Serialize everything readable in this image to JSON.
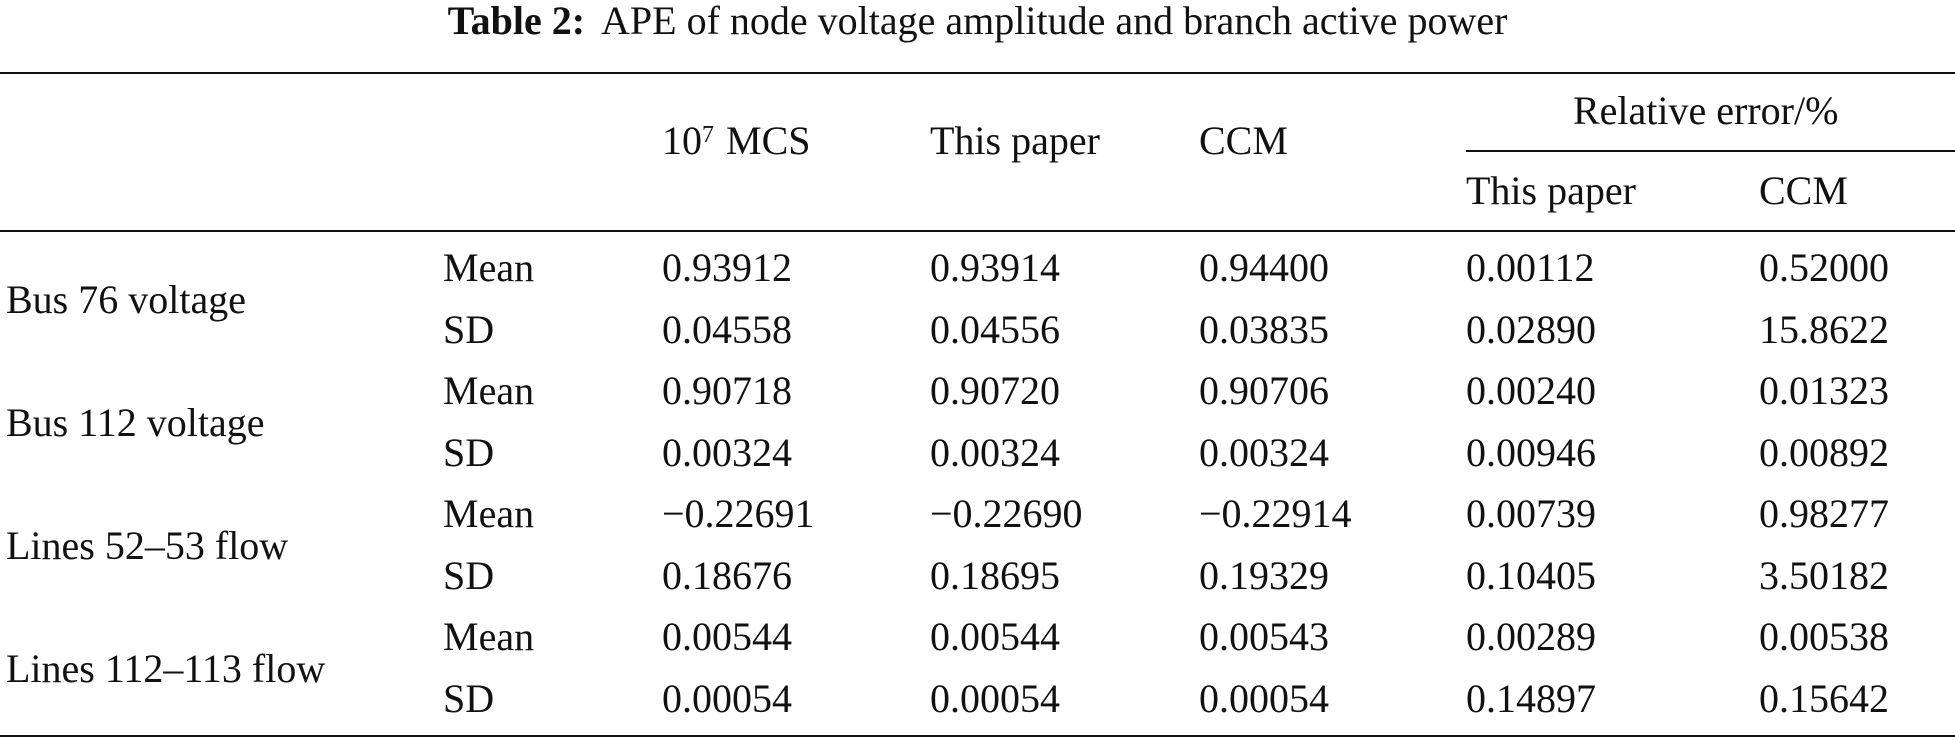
{
  "caption": {
    "label": "Table 2:",
    "text": "APE of node voltage amplitude and branch active power"
  },
  "header": {
    "mcs_base": "10",
    "mcs_exp": "7",
    "mcs_rest": "MCS",
    "this_paper": "This paper",
    "ccm": "CCM",
    "relative_error": "Relative error/%",
    "sub_this_paper": "This paper",
    "sub_ccm": "CCM"
  },
  "groups": [
    {
      "label": "Bus 76 voltage"
    },
    {
      "label": "Bus 112 voltage"
    },
    {
      "label": "Lines 52–53 flow"
    },
    {
      "label": "Lines 112–113 flow"
    }
  ],
  "rows": [
    {
      "stat": "Mean",
      "mcs": "0.93912",
      "this_paper": "0.93914",
      "ccm": "0.94400",
      "re_this_paper": "0.00112",
      "re_ccm": "0.52000"
    },
    {
      "stat": "SD",
      "mcs": "0.04558",
      "this_paper": "0.04556",
      "ccm": "0.03835",
      "re_this_paper": "0.02890",
      "re_ccm": "15.8622"
    },
    {
      "stat": "Mean",
      "mcs": "0.90718",
      "this_paper": "0.90720",
      "ccm": "0.90706",
      "re_this_paper": "0.00240",
      "re_ccm": "0.01323"
    },
    {
      "stat": "SD",
      "mcs": "0.00324",
      "this_paper": "0.00324",
      "ccm": "0.00324",
      "re_this_paper": "0.00946",
      "re_ccm": "0.00892"
    },
    {
      "stat": "Mean",
      "mcs": "−0.22691",
      "this_paper": "−0.22690",
      "ccm": "−0.22914",
      "re_this_paper": "0.00739",
      "re_ccm": "0.98277"
    },
    {
      "stat": "SD",
      "mcs": "0.18676",
      "this_paper": "0.18695",
      "ccm": "0.19329",
      "re_this_paper": "0.10405",
      "re_ccm": "3.50182"
    },
    {
      "stat": "Mean",
      "mcs": "0.00544",
      "this_paper": "0.00544",
      "ccm": "0.00543",
      "re_this_paper": "0.00289",
      "re_ccm": "0.00538"
    },
    {
      "stat": "SD",
      "mcs": "0.00054",
      "this_paper": "0.00054",
      "ccm": "0.00054",
      "re_this_paper": "0.14897",
      "re_ccm": "0.15642"
    }
  ]
}
